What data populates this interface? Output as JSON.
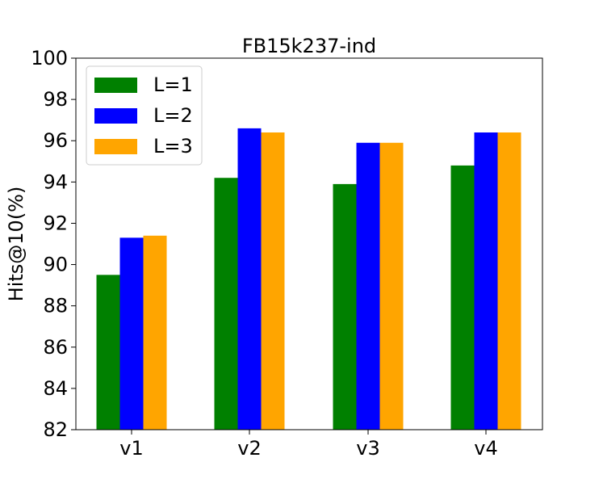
{
  "chart_data": {
    "type": "bar",
    "title": "FB15k237-ind",
    "xlabel": "",
    "ylabel": "Hits@10(%)",
    "ylim": [
      82,
      100
    ],
    "yticks": [
      82,
      84,
      86,
      88,
      90,
      92,
      94,
      96,
      98,
      100
    ],
    "categories": [
      "v1",
      "v2",
      "v3",
      "v4"
    ],
    "series": [
      {
        "name": "L=1",
        "color": "#008000",
        "values": [
          89.5,
          94.2,
          93.9,
          94.8
        ]
      },
      {
        "name": "L=2",
        "color": "#0000ff",
        "values": [
          91.3,
          96.6,
          95.9,
          96.4
        ]
      },
      {
        "name": "L=3",
        "color": "#ffa500",
        "values": [
          91.4,
          96.4,
          95.9,
          96.4
        ]
      }
    ],
    "legend": "top-left",
    "grid": false
  }
}
